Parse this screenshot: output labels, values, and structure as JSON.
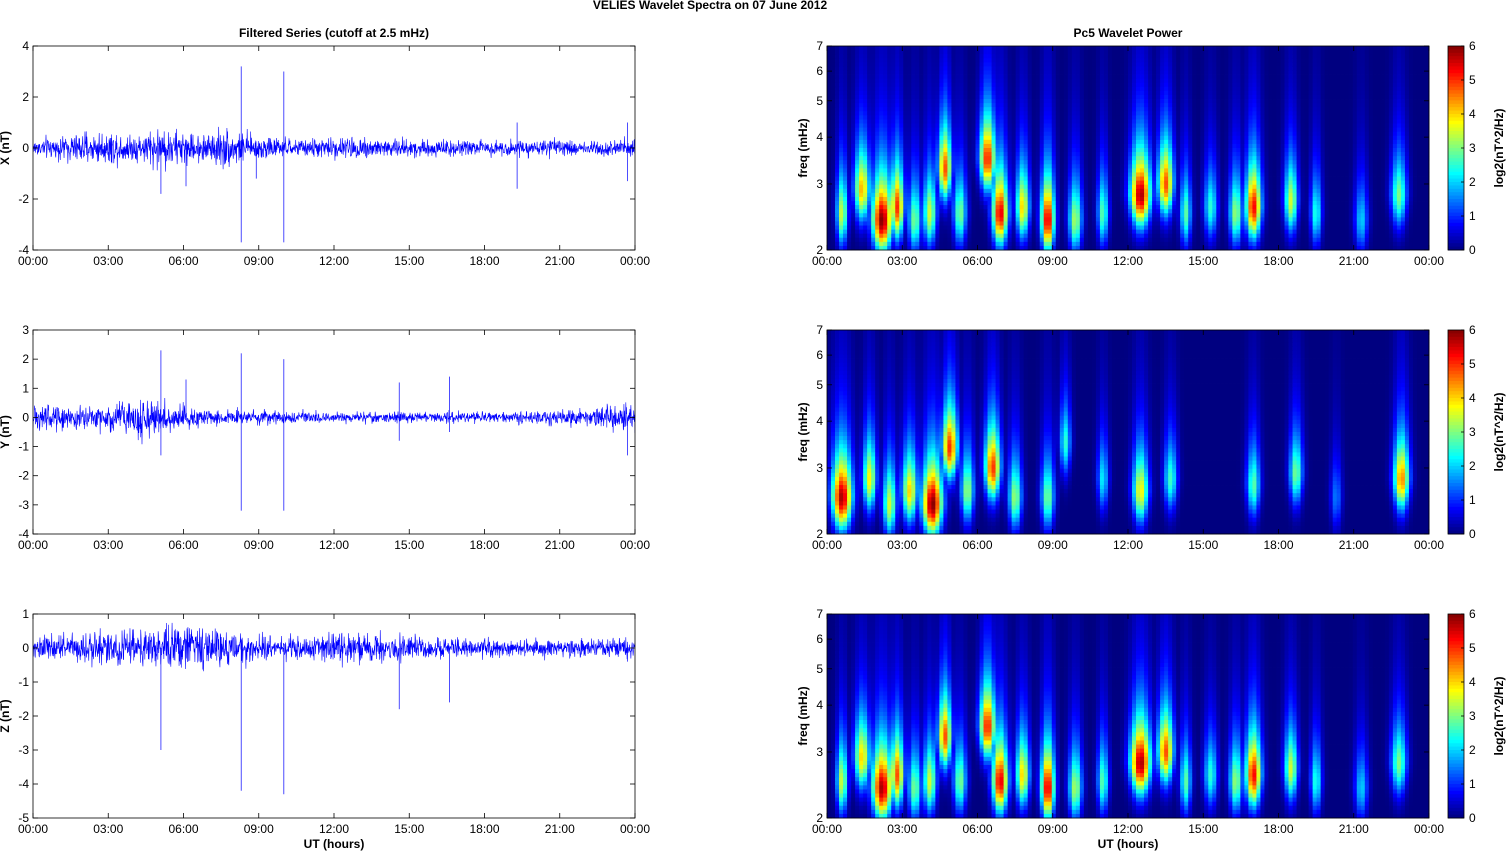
{
  "figure": {
    "title": "VELIES Wavelet Spectra on 07 June     2012"
  },
  "chart_data": [
    {
      "type": "line",
      "panel": "X",
      "title": "Filtered Series (cutoff at 2.5 mHz)",
      "xlabel": "",
      "ylabel": "X (nT)",
      "xticks": [
        "00:00",
        "03:00",
        "06:00",
        "09:00",
        "12:00",
        "15:00",
        "18:00",
        "21:00",
        "00:00"
      ],
      "xlim": [
        0,
        24
      ],
      "ylim": [
        -4,
        4
      ],
      "yticks": [
        -4,
        -2,
        0,
        2,
        4
      ],
      "series": [
        {
          "color": "#0000ff"
        }
      ],
      "spikes": [
        {
          "t": 5.1,
          "v": -1.8
        },
        {
          "t": 6.1,
          "v": -1.5
        },
        {
          "t": 8.3,
          "v": 3.2
        },
        {
          "t": 8.3,
          "v": -3.7
        },
        {
          "t": 8.9,
          "v": -1.2
        },
        {
          "t": 10.0,
          "v": 3.0
        },
        {
          "t": 10.0,
          "v": -3.7
        },
        {
          "t": 19.3,
          "v": 1.0
        },
        {
          "t": 19.3,
          "v": -1.6
        },
        {
          "t": 23.7,
          "v": 1.0
        },
        {
          "t": 23.7,
          "v": -1.3
        }
      ],
      "envelope": [
        {
          "t": 0,
          "a": 0.35
        },
        {
          "t": 2.5,
          "a": 0.6
        },
        {
          "t": 4.5,
          "a": 0.55
        },
        {
          "t": 5.0,
          "a": 0.85
        },
        {
          "t": 6.5,
          "a": 0.5
        },
        {
          "t": 7.5,
          "a": 0.75
        },
        {
          "t": 8.5,
          "a": 0.55
        },
        {
          "t": 10.5,
          "a": 0.3
        },
        {
          "t": 13.0,
          "a": 0.45
        },
        {
          "t": 15.0,
          "a": 0.35
        },
        {
          "t": 18.0,
          "a": 0.3
        },
        {
          "t": 21.0,
          "a": 0.3
        },
        {
          "t": 24,
          "a": 0.35
        }
      ]
    },
    {
      "type": "heatmap",
      "panel": "X",
      "title": "Pc5 Wavelet Power",
      "xlabel": "",
      "ylabel": "freq (mHz)",
      "xticks": [
        "00:00",
        "03:00",
        "06:00",
        "09:00",
        "12:00",
        "15:00",
        "18:00",
        "21:00",
        "00:00"
      ],
      "xlim": [
        0,
        24
      ],
      "ylim": [
        2,
        7
      ],
      "yscale": "log",
      "yticks": [
        2,
        3,
        4,
        5,
        6,
        7
      ],
      "colorbar": {
        "label": "log2(nT^2/Hz)",
        "ticks": [
          0,
          1,
          2,
          3,
          4,
          5,
          6
        ],
        "colormap": "jet",
        "range": [
          0,
          6
        ]
      },
      "bursts": [
        {
          "t": 0.6,
          "f": 2.5,
          "p": 3.5,
          "w": 0.25
        },
        {
          "t": 1.4,
          "f": 2.9,
          "p": 4.2,
          "w": 0.35
        },
        {
          "t": 2.2,
          "f": 2.4,
          "p": 6.0,
          "w": 0.45
        },
        {
          "t": 2.8,
          "f": 2.6,
          "p": 5.0,
          "w": 0.3
        },
        {
          "t": 3.5,
          "f": 2.4,
          "p": 3.0,
          "w": 0.3
        },
        {
          "t": 4.1,
          "f": 2.5,
          "p": 3.5,
          "w": 0.3
        },
        {
          "t": 4.7,
          "f": 3.3,
          "p": 4.8,
          "w": 0.3
        },
        {
          "t": 5.3,
          "f": 2.5,
          "p": 3.0,
          "w": 0.3
        },
        {
          "t": 6.4,
          "f": 3.5,
          "p": 5.2,
          "w": 0.35
        },
        {
          "t": 6.9,
          "f": 2.5,
          "p": 5.5,
          "w": 0.35
        },
        {
          "t": 7.8,
          "f": 2.6,
          "p": 4.0,
          "w": 0.3
        },
        {
          "t": 8.8,
          "f": 2.4,
          "p": 5.6,
          "w": 0.3
        },
        {
          "t": 9.9,
          "f": 2.4,
          "p": 3.3,
          "w": 0.3
        },
        {
          "t": 11.0,
          "f": 2.5,
          "p": 2.8,
          "w": 0.25
        },
        {
          "t": 12.5,
          "f": 2.8,
          "p": 5.8,
          "w": 0.45
        },
        {
          "t": 13.5,
          "f": 3.0,
          "p": 4.8,
          "w": 0.35
        },
        {
          "t": 14.3,
          "f": 2.5,
          "p": 2.8,
          "w": 0.25
        },
        {
          "t": 15.3,
          "f": 2.6,
          "p": 2.5,
          "w": 0.3
        },
        {
          "t": 16.3,
          "f": 2.5,
          "p": 3.2,
          "w": 0.3
        },
        {
          "t": 17.0,
          "f": 2.6,
          "p": 5.3,
          "w": 0.35
        },
        {
          "t": 18.5,
          "f": 2.7,
          "p": 3.5,
          "w": 0.3
        },
        {
          "t": 19.5,
          "f": 2.5,
          "p": 2.5,
          "w": 0.25
        },
        {
          "t": 21.3,
          "f": 2.4,
          "p": 2.0,
          "w": 0.3
        },
        {
          "t": 22.8,
          "f": 2.8,
          "p": 3.0,
          "w": 0.35
        }
      ]
    },
    {
      "type": "line",
      "panel": "Y",
      "title": "",
      "xlabel": "",
      "ylabel": "Y (nT)",
      "xticks": [
        "00:00",
        "03:00",
        "06:00",
        "09:00",
        "12:00",
        "15:00",
        "18:00",
        "21:00",
        "00:00"
      ],
      "xlim": [
        0,
        24
      ],
      "ylim": [
        -4,
        3
      ],
      "yticks": [
        -4,
        -3,
        -2,
        -1,
        0,
        1,
        2,
        3
      ],
      "series": [
        {
          "color": "#0000ff"
        }
      ],
      "spikes": [
        {
          "t": 5.1,
          "v": 2.3
        },
        {
          "t": 5.1,
          "v": -1.3
        },
        {
          "t": 6.1,
          "v": 1.3
        },
        {
          "t": 8.3,
          "v": 2.2
        },
        {
          "t": 8.3,
          "v": -3.2
        },
        {
          "t": 10.0,
          "v": 2.0
        },
        {
          "t": 10.0,
          "v": -3.2
        },
        {
          "t": 14.6,
          "v": 1.2
        },
        {
          "t": 14.6,
          "v": -0.8
        },
        {
          "t": 16.6,
          "v": 1.4
        },
        {
          "t": 16.6,
          "v": -0.5
        },
        {
          "t": 23.7,
          "v": -1.3
        }
      ],
      "envelope": [
        {
          "t": 0,
          "a": 0.5
        },
        {
          "t": 2.0,
          "a": 0.35
        },
        {
          "t": 4.5,
          "a": 0.7
        },
        {
          "t": 5.5,
          "a": 0.45
        },
        {
          "t": 7.0,
          "a": 0.3
        },
        {
          "t": 10.0,
          "a": 0.2
        },
        {
          "t": 14.0,
          "a": 0.18
        },
        {
          "t": 18.0,
          "a": 0.18
        },
        {
          "t": 22.0,
          "a": 0.25
        },
        {
          "t": 24,
          "a": 0.55
        }
      ]
    },
    {
      "type": "heatmap",
      "panel": "Y",
      "title": "",
      "xlabel": "",
      "ylabel": "freq (mHz)",
      "xticks": [
        "00:00",
        "03:00",
        "06:00",
        "09:00",
        "12:00",
        "15:00",
        "18:00",
        "21:00",
        "00:00"
      ],
      "xlim": [
        0,
        24
      ],
      "ylim": [
        2,
        7
      ],
      "yscale": "log",
      "yticks": [
        2,
        3,
        4,
        5,
        6,
        7
      ],
      "colorbar": {
        "label": "log2(nT^2/Hz)",
        "ticks": [
          0,
          1,
          2,
          3,
          4,
          5,
          6
        ],
        "colormap": "jet",
        "range": [
          0,
          6
        ]
      },
      "bursts": [
        {
          "t": 0.6,
          "f": 2.5,
          "p": 5.8,
          "w": 0.45
        },
        {
          "t": 1.7,
          "f": 2.8,
          "p": 3.8,
          "w": 0.3
        },
        {
          "t": 2.5,
          "f": 2.4,
          "p": 3.5,
          "w": 0.3
        },
        {
          "t": 3.3,
          "f": 2.6,
          "p": 4.0,
          "w": 0.35
        },
        {
          "t": 4.2,
          "f": 2.4,
          "p": 6.0,
          "w": 0.45
        },
        {
          "t": 4.9,
          "f": 3.4,
          "p": 5.0,
          "w": 0.35
        },
        {
          "t": 5.6,
          "f": 2.6,
          "p": 3.2,
          "w": 0.3
        },
        {
          "t": 6.6,
          "f": 3.0,
          "p": 5.0,
          "w": 0.35
        },
        {
          "t": 7.5,
          "f": 2.5,
          "p": 3.2,
          "w": 0.3
        },
        {
          "t": 8.8,
          "f": 2.5,
          "p": 3.0,
          "w": 0.3
        },
        {
          "t": 9.5,
          "f": 3.5,
          "p": 2.5,
          "w": 0.25
        },
        {
          "t": 11.0,
          "f": 2.8,
          "p": 2.2,
          "w": 0.25
        },
        {
          "t": 12.5,
          "f": 2.6,
          "p": 3.8,
          "w": 0.35
        },
        {
          "t": 13.7,
          "f": 2.8,
          "p": 2.6,
          "w": 0.3
        },
        {
          "t": 17.0,
          "f": 2.7,
          "p": 2.8,
          "w": 0.3
        },
        {
          "t": 18.7,
          "f": 2.9,
          "p": 3.0,
          "w": 0.3
        },
        {
          "t": 20.3,
          "f": 2.5,
          "p": 1.5,
          "w": 0.25
        },
        {
          "t": 22.9,
          "f": 2.8,
          "p": 4.5,
          "w": 0.35
        }
      ]
    },
    {
      "type": "line",
      "panel": "Z",
      "title": "",
      "xlabel": "UT (hours)",
      "ylabel": "Z (nT)",
      "xticks": [
        "00:00",
        "03:00",
        "06:00",
        "09:00",
        "12:00",
        "15:00",
        "18:00",
        "21:00",
        "00:00"
      ],
      "xlim": [
        0,
        24
      ],
      "ylim": [
        -5,
        1
      ],
      "yticks": [
        -5,
        -4,
        -3,
        -2,
        -1,
        0,
        1
      ],
      "series": [
        {
          "color": "#0000ff"
        }
      ],
      "spikes": [
        {
          "t": 5.1,
          "v": -3.0
        },
        {
          "t": 8.3,
          "v": -4.2
        },
        {
          "t": 10.0,
          "v": -4.3
        },
        {
          "t": 14.6,
          "v": -1.8
        },
        {
          "t": 16.6,
          "v": -1.6
        },
        {
          "t": 23.7,
          "v": -0.4
        }
      ],
      "envelope": [
        {
          "t": 0,
          "a": 0.3
        },
        {
          "t": 2.0,
          "a": 0.45
        },
        {
          "t": 4.5,
          "a": 0.5
        },
        {
          "t": 6.5,
          "a": 0.65
        },
        {
          "t": 8.5,
          "a": 0.45
        },
        {
          "t": 10.0,
          "a": 0.3
        },
        {
          "t": 13.0,
          "a": 0.45
        },
        {
          "t": 16.0,
          "a": 0.3
        },
        {
          "t": 20.0,
          "a": 0.25
        },
        {
          "t": 24,
          "a": 0.3
        }
      ]
    },
    {
      "type": "heatmap",
      "panel": "Z",
      "title": "",
      "xlabel": "UT (hours)",
      "ylabel": "freq (mHz)",
      "xticks": [
        "00:00",
        "03:00",
        "06:00",
        "09:00",
        "12:00",
        "15:00",
        "18:00",
        "21:00",
        "00:00"
      ],
      "xlim": [
        0,
        24
      ],
      "ylim": [
        2,
        7
      ],
      "yscale": "log",
      "yticks": [
        2,
        3,
        4,
        5,
        6,
        7
      ],
      "colorbar": {
        "label": "log2(nT^2/Hz)",
        "ticks": [
          0,
          1,
          2,
          3,
          4,
          5,
          6
        ],
        "colormap": "jet",
        "range": [
          0,
          6
        ]
      },
      "bursts": [
        {
          "t": 0.6,
          "f": 2.5,
          "p": 3.5,
          "w": 0.25
        },
        {
          "t": 1.4,
          "f": 2.9,
          "p": 4.0,
          "w": 0.35
        },
        {
          "t": 2.2,
          "f": 2.4,
          "p": 5.8,
          "w": 0.45
        },
        {
          "t": 2.8,
          "f": 2.6,
          "p": 4.8,
          "w": 0.3
        },
        {
          "t": 3.5,
          "f": 2.4,
          "p": 3.0,
          "w": 0.3
        },
        {
          "t": 4.1,
          "f": 2.5,
          "p": 3.5,
          "w": 0.3
        },
        {
          "t": 4.7,
          "f": 3.3,
          "p": 4.8,
          "w": 0.3
        },
        {
          "t": 5.3,
          "f": 2.5,
          "p": 3.0,
          "w": 0.3
        },
        {
          "t": 6.4,
          "f": 3.5,
          "p": 5.2,
          "w": 0.35
        },
        {
          "t": 6.9,
          "f": 2.5,
          "p": 5.5,
          "w": 0.35
        },
        {
          "t": 7.8,
          "f": 2.6,
          "p": 4.0,
          "w": 0.3
        },
        {
          "t": 8.8,
          "f": 2.4,
          "p": 5.6,
          "w": 0.3
        },
        {
          "t": 9.9,
          "f": 2.4,
          "p": 3.3,
          "w": 0.3
        },
        {
          "t": 11.0,
          "f": 2.5,
          "p": 2.8,
          "w": 0.25
        },
        {
          "t": 12.5,
          "f": 2.8,
          "p": 5.8,
          "w": 0.45
        },
        {
          "t": 13.5,
          "f": 3.0,
          "p": 4.8,
          "w": 0.35
        },
        {
          "t": 14.3,
          "f": 2.5,
          "p": 2.8,
          "w": 0.25
        },
        {
          "t": 15.3,
          "f": 2.6,
          "p": 2.5,
          "w": 0.3
        },
        {
          "t": 16.3,
          "f": 2.5,
          "p": 3.2,
          "w": 0.3
        },
        {
          "t": 17.0,
          "f": 2.6,
          "p": 5.3,
          "w": 0.35
        },
        {
          "t": 18.5,
          "f": 2.7,
          "p": 3.5,
          "w": 0.3
        },
        {
          "t": 19.5,
          "f": 2.5,
          "p": 2.5,
          "w": 0.25
        },
        {
          "t": 21.3,
          "f": 2.4,
          "p": 2.0,
          "w": 0.3
        },
        {
          "t": 22.8,
          "f": 2.8,
          "p": 3.0,
          "w": 0.35
        }
      ]
    }
  ]
}
